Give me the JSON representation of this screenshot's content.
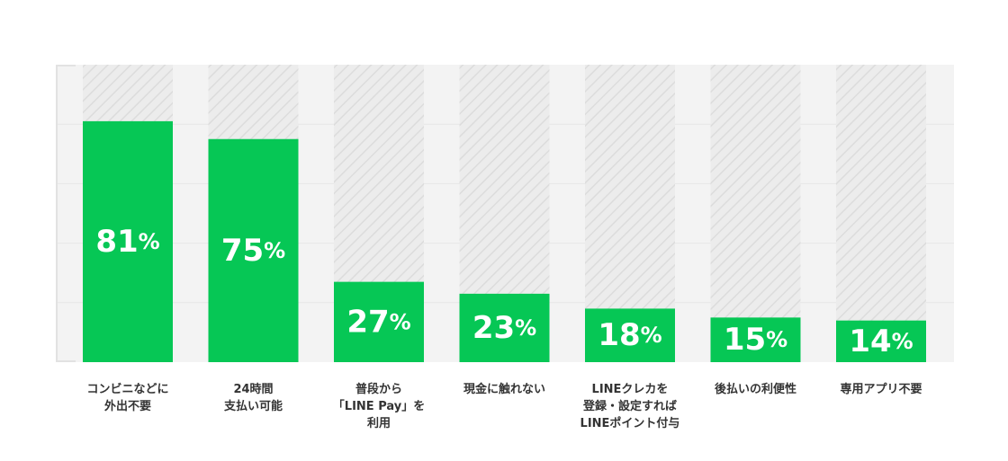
{
  "colors": {
    "bar": "#06c755",
    "track_light": "#ececec",
    "track_stripe": "#dcdcdc",
    "background_band": "#f3f3f3",
    "gridline": "#e6e6e6",
    "axis_line": "#e2e2e2",
    "value_text": "#ffffff",
    "category_text": "#333333"
  },
  "chart_data": {
    "type": "bar",
    "categories": [
      "コンビニなどに\n外出不要",
      "24時間\n支払い可能",
      "普段から\n「LINE Pay」を\n利用",
      "現金に触れない",
      "LINEクレカを\n登録・設定すれば\nLINEポイント付与",
      "後払いの利便性",
      "専用アプリ不要"
    ],
    "values": [
      81,
      75,
      27,
      23,
      18,
      15,
      14
    ],
    "value_labels": [
      {
        "number": "81",
        "unit": "%"
      },
      {
        "number": "75",
        "unit": "%"
      },
      {
        "number": "27",
        "unit": "%"
      },
      {
        "number": "23",
        "unit": "%"
      },
      {
        "number": "18",
        "unit": "%"
      },
      {
        "number": "15",
        "unit": "%"
      },
      {
        "number": "14",
        "unit": "%"
      }
    ],
    "ylim": [
      0,
      100
    ],
    "grid": true,
    "title": "",
    "xlabel": "",
    "ylabel": ""
  }
}
